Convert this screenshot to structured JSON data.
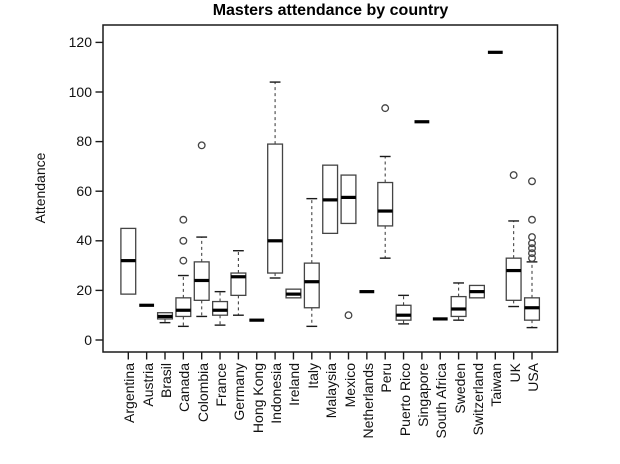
{
  "chart_data": {
    "type": "boxplot",
    "title": "Masters attendance by country",
    "xlabel": "",
    "ylabel": "Attendance",
    "y_ticks": [
      0,
      20,
      40,
      60,
      80,
      100,
      120
    ],
    "ylim": [
      -5,
      127
    ],
    "grid": false,
    "legend": null,
    "frame": "full-box",
    "categories": [
      "Argentina",
      "Austria",
      "Brasil",
      "Canada",
      "Colombia",
      "France",
      "Germany",
      "Hong Kong",
      "Indonesia",
      "Ireland",
      "Italy",
      "Malaysia",
      "Mexico",
      "Netherlands",
      "Peru",
      "Puerto Rico",
      "Singapore",
      "South Africa",
      "Sweden",
      "Switzerland",
      "Taiwan",
      "UK",
      "USA"
    ],
    "series": [
      {
        "name": "Argentina",
        "low": 18.5,
        "q1": 18.5,
        "median": 32,
        "q3": 45,
        "high": 45,
        "outliers": []
      },
      {
        "name": "Austria",
        "low": 14,
        "q1": 14,
        "median": 14,
        "q3": 14,
        "high": 14,
        "outliers": []
      },
      {
        "name": "Brasil",
        "low": 7,
        "q1": 8.5,
        "median": 9.5,
        "q3": 11,
        "high": 11,
        "outliers": []
      },
      {
        "name": "Canada",
        "low": 5.5,
        "q1": 9.5,
        "median": 12,
        "q3": 17,
        "high": 26,
        "outliers": [
          32,
          40,
          48.5
        ]
      },
      {
        "name": "Colombia",
        "low": 9.5,
        "q1": 16,
        "median": 24,
        "q3": 31.5,
        "high": 41.5,
        "outliers": [
          78.5
        ]
      },
      {
        "name": "France",
        "low": 6,
        "q1": 10,
        "median": 12,
        "q3": 15.5,
        "high": 19.5,
        "outliers": []
      },
      {
        "name": "Germany",
        "low": 10,
        "q1": 18,
        "median": 25.5,
        "q3": 27,
        "high": 36,
        "outliers": []
      },
      {
        "name": "Hong Kong",
        "low": 8,
        "q1": 8,
        "median": 8,
        "q3": 8,
        "high": 8,
        "outliers": []
      },
      {
        "name": "Indonesia",
        "low": 25,
        "q1": 27,
        "median": 40,
        "q3": 79,
        "high": 104,
        "outliers": []
      },
      {
        "name": "Ireland",
        "low": 17,
        "q1": 17,
        "median": 18.5,
        "q3": 20.5,
        "high": 20.5,
        "outliers": []
      },
      {
        "name": "Italy",
        "low": 5.5,
        "q1": 13,
        "median": 23.5,
        "q3": 31,
        "high": 57,
        "outliers": []
      },
      {
        "name": "Malaysia",
        "low": 43,
        "q1": 43,
        "median": 56.5,
        "q3": 70.5,
        "high": 70.5,
        "outliers": []
      },
      {
        "name": "Mexico",
        "low": 47,
        "q1": 47,
        "median": 57.5,
        "q3": 66.5,
        "high": 66.5,
        "outliers": [
          10
        ]
      },
      {
        "name": "Netherlands",
        "low": 19.5,
        "q1": 19.5,
        "median": 19.5,
        "q3": 19.5,
        "high": 19.5,
        "outliers": []
      },
      {
        "name": "Peru",
        "low": 33,
        "q1": 46,
        "median": 52,
        "q3": 63.5,
        "high": 74,
        "outliers": [
          93.5
        ]
      },
      {
        "name": "Puerto Rico",
        "low": 6.5,
        "q1": 8,
        "median": 10,
        "q3": 14,
        "high": 18,
        "outliers": []
      },
      {
        "name": "Singapore",
        "low": 88,
        "q1": 88,
        "median": 88,
        "q3": 88,
        "high": 88,
        "outliers": []
      },
      {
        "name": "South Africa",
        "low": 8.5,
        "q1": 8.5,
        "median": 8.5,
        "q3": 8.5,
        "high": 8.5,
        "outliers": []
      },
      {
        "name": "Sweden",
        "low": 8,
        "q1": 9.5,
        "median": 12.5,
        "q3": 17.5,
        "high": 23,
        "outliers": []
      },
      {
        "name": "Switzerland",
        "low": 17,
        "q1": 17,
        "median": 19.5,
        "q3": 22,
        "high": 22,
        "outliers": []
      },
      {
        "name": "Taiwan",
        "low": 116,
        "q1": 116,
        "median": 116,
        "q3": 116,
        "high": 116,
        "outliers": []
      },
      {
        "name": "UK",
        "low": 13.5,
        "q1": 16,
        "median": 28,
        "q3": 33,
        "high": 48,
        "outliers": [
          66.5
        ]
      },
      {
        "name": "USA",
        "low": 5,
        "q1": 8,
        "median": 13,
        "q3": 17,
        "high": 31.5,
        "outliers": [
          33,
          35,
          37,
          39,
          41.5,
          48.5,
          64
        ]
      }
    ],
    "colors": {
      "box_stroke": "#444444",
      "median": "#000000",
      "axis": "#1a1a1a",
      "background": "#ffffff",
      "text": "#111111"
    }
  }
}
